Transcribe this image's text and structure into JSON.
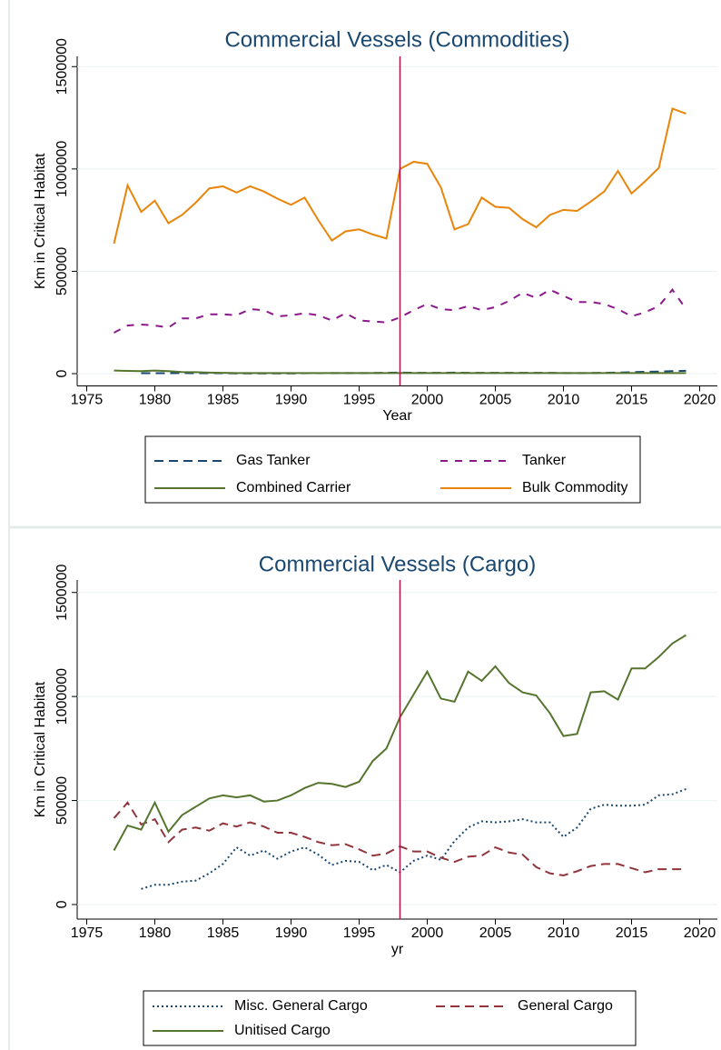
{
  "chart_data": [
    {
      "type": "line",
      "title": "Commercial Vessels (Commodities)",
      "xlabel": "Year",
      "ylabel": "Km in Critical Habitat",
      "x": [
        1977,
        1978,
        1979,
        1980,
        1981,
        1982,
        1983,
        1984,
        1985,
        1986,
        1987,
        1988,
        1989,
        1990,
        1991,
        1992,
        1993,
        1994,
        1995,
        1996,
        1997,
        1998,
        1999,
        2000,
        2001,
        2002,
        2003,
        2004,
        2005,
        2006,
        2007,
        2008,
        2009,
        2010,
        2011,
        2012,
        2013,
        2014,
        2015,
        2016,
        2017,
        2018,
        2019
      ],
      "xlim": [
        1974.3,
        2021.3
      ],
      "xticks": [
        1975,
        1980,
        1985,
        1990,
        1995,
        2000,
        2005,
        2010,
        2015,
        2020
      ],
      "ylim": [
        -60000,
        1550000
      ],
      "yticks": [
        0,
        500000,
        1000000,
        1500000
      ],
      "grid": true,
      "xline": 1998,
      "xline_color": "#b0134a",
      "series": [
        {
          "name": "Gas Tanker",
          "color": "#1a476f",
          "dash": "10 6",
          "values": [
            null,
            null,
            2000,
            2000,
            2000,
            3000,
            2000,
            2000,
            2000,
            1000,
            1000,
            1000,
            1000,
            1000,
            2000,
            2000,
            3000,
            3000,
            3000,
            3000,
            4000,
            5000,
            4000,
            4000,
            4000,
            5000,
            4000,
            4000,
            4000,
            4000,
            4000,
            4000,
            4000,
            3000,
            3000,
            3000,
            4000,
            5000,
            7000,
            9000,
            10000,
            12000,
            14000
          ]
        },
        {
          "name": "Tanker",
          "color": "#8b1a8b",
          "dash": "8 8",
          "values": [
            200000,
            235000,
            240000,
            235000,
            225000,
            270000,
            270000,
            290000,
            290000,
            285000,
            315000,
            310000,
            280000,
            285000,
            295000,
            285000,
            260000,
            295000,
            260000,
            255000,
            250000,
            275000,
            310000,
            340000,
            315000,
            310000,
            330000,
            310000,
            325000,
            355000,
            395000,
            370000,
            410000,
            380000,
            350000,
            350000,
            340000,
            315000,
            280000,
            300000,
            330000,
            410000,
            315000
          ]
        },
        {
          "name": "Combined Carrier",
          "color": "#55752f",
          "dash": "",
          "values": [
            15000,
            13000,
            12000,
            15000,
            12000,
            8000,
            7000,
            5000,
            4000,
            3000,
            3000,
            3000,
            3000,
            3000,
            3000,
            3000,
            3000,
            3000,
            3000,
            3000,
            3000,
            3000,
            3000,
            3000,
            3000,
            3000,
            3000,
            3000,
            3000,
            3000,
            3000,
            3000,
            3000,
            3000,
            3000,
            3000,
            3000,
            3000,
            3000,
            3000,
            3000,
            3000,
            3000
          ]
        },
        {
          "name": "Bulk Commodity",
          "color": "#e8850a",
          "dash": "",
          "values": [
            635000,
            920000,
            790000,
            845000,
            735000,
            775000,
            835000,
            905000,
            915000,
            885000,
            915000,
            890000,
            855000,
            825000,
            860000,
            750000,
            650000,
            695000,
            705000,
            680000,
            660000,
            1000000,
            1035000,
            1025000,
            910000,
            705000,
            730000,
            860000,
            815000,
            810000,
            755000,
            715000,
            775000,
            800000,
            795000,
            840000,
            890000,
            990000,
            880000,
            940000,
            1005000,
            1295000,
            1270000
          ]
        }
      ]
    },
    {
      "type": "line",
      "title": "Commercial Vessels (Cargo)",
      "xlabel": "yr",
      "ylabel": "Km in Critical Habitat",
      "x": [
        1977,
        1978,
        1979,
        1980,
        1981,
        1982,
        1983,
        1984,
        1985,
        1986,
        1987,
        1988,
        1989,
        1990,
        1991,
        1992,
        1993,
        1994,
        1995,
        1996,
        1997,
        1998,
        1999,
        2000,
        2001,
        2002,
        2003,
        2004,
        2005,
        2006,
        2007,
        2008,
        2009,
        2010,
        2011,
        2012,
        2013,
        2014,
        2015,
        2016,
        2017,
        2018,
        2019
      ],
      "xlim": [
        1974.3,
        2021.3
      ],
      "xticks": [
        1975,
        1980,
        1985,
        1990,
        1995,
        2000,
        2005,
        2010,
        2015,
        2020
      ],
      "ylim": [
        -70000,
        1560000
      ],
      "yticks": [
        0,
        500000,
        1000000,
        1500000
      ],
      "grid": true,
      "xline": 1998,
      "xline_color": "#b0134a",
      "series": [
        {
          "name": "Misc. General Cargo",
          "color": "#1a476f",
          "dash": "2 3",
          "values": [
            null,
            null,
            75000,
            95000,
            95000,
            110000,
            115000,
            150000,
            195000,
            275000,
            235000,
            260000,
            220000,
            255000,
            275000,
            240000,
            190000,
            210000,
            205000,
            165000,
            190000,
            155000,
            210000,
            235000,
            215000,
            305000,
            370000,
            400000,
            395000,
            400000,
            410000,
            395000,
            395000,
            325000,
            370000,
            460000,
            480000,
            475000,
            475000,
            480000,
            525000,
            530000,
            555000
          ]
        },
        {
          "name": "General Cargo",
          "color": "#90353b",
          "dash": "10 6",
          "values": [
            415000,
            490000,
            385000,
            410000,
            300000,
            360000,
            370000,
            355000,
            390000,
            375000,
            395000,
            375000,
            345000,
            345000,
            325000,
            300000,
            285000,
            290000,
            265000,
            235000,
            245000,
            280000,
            255000,
            255000,
            225000,
            205000,
            230000,
            235000,
            275000,
            250000,
            240000,
            180000,
            150000,
            140000,
            160000,
            185000,
            195000,
            195000,
            175000,
            155000,
            170000,
            170000,
            170000
          ]
        },
        {
          "name": "Unitised Cargo",
          "color": "#55752f",
          "dash": "",
          "values": [
            260000,
            380000,
            360000,
            490000,
            350000,
            430000,
            470000,
            510000,
            525000,
            515000,
            525000,
            495000,
            500000,
            525000,
            560000,
            585000,
            580000,
            565000,
            590000,
            690000,
            750000,
            900000,
            1010000,
            1120000,
            990000,
            975000,
            1120000,
            1075000,
            1145000,
            1065000,
            1020000,
            1005000,
            920000,
            810000,
            820000,
            1020000,
            1025000,
            985000,
            1135000,
            1135000,
            1190000,
            1255000,
            1295000
          ]
        }
      ]
    }
  ]
}
